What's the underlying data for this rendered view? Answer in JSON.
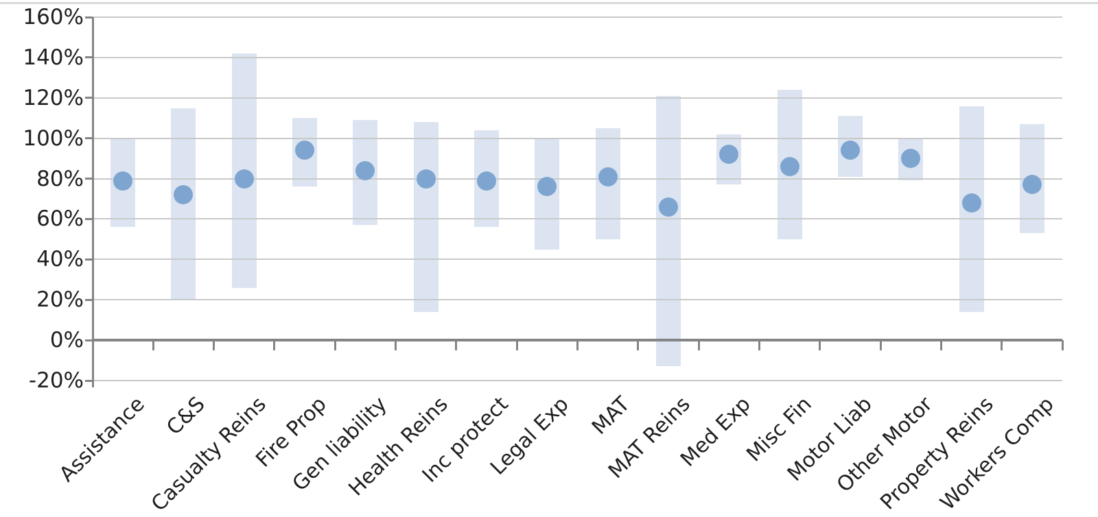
{
  "chart_data": {
    "type": "bar",
    "subtype": "floating-range-bars-with-dot-markers",
    "title": "",
    "xlabel": "",
    "ylabel": "",
    "unit": "%",
    "categories": [
      "Assistance",
      "C&S",
      "Casualty Reins",
      "Fire Prop",
      "Gen liability",
      "Health Reins",
      "Inc protect",
      "Legal Exp",
      "MAT",
      "MAT Reins",
      "Med Exp",
      "Misc Fin",
      "Motor Liab",
      "Other Motor",
      "Property Reins",
      "Workers Comp"
    ],
    "series": [
      {
        "name": "range-low",
        "values": [
          56,
          20,
          26,
          76,
          57,
          14,
          56,
          45,
          50,
          -13,
          77,
          50,
          81,
          79,
          14,
          53
        ]
      },
      {
        "name": "range-high",
        "values": [
          100,
          115,
          142,
          110,
          109,
          108,
          104,
          100,
          105,
          121,
          102,
          124,
          111,
          100,
          116,
          107
        ]
      },
      {
        "name": "dot",
        "values": [
          79,
          72,
          80,
          94,
          84,
          80,
          79,
          76,
          81,
          66,
          92,
          86,
          94,
          90,
          68,
          77
        ]
      }
    ],
    "y_axis": {
      "min": -20,
      "max": 160,
      "step": 20,
      "tick_labels": [
        "160%",
        "140%",
        "120%",
        "100%",
        "80%",
        "60%",
        "40%",
        "20%",
        "0%",
        "-20%"
      ]
    },
    "grid": true,
    "legend": "none",
    "colors": {
      "bar": "#dbe4f0",
      "dot": "#7ea5d0",
      "gridline": "#c9c9c9",
      "axis": "#848484",
      "text": "#1f1f1f"
    }
  }
}
